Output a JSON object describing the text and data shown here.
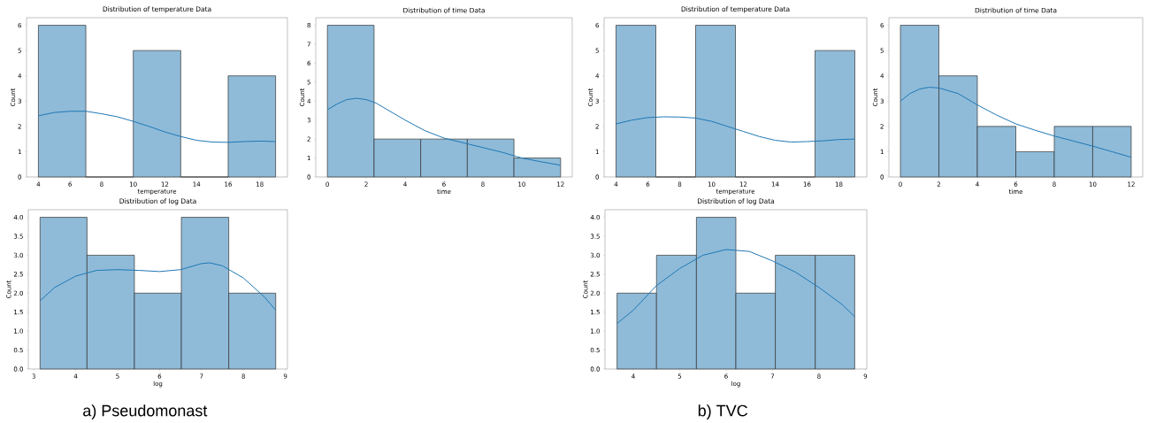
{
  "chart_data": [
    {
      "type": "histogram",
      "title": "Distribution of temperature Data",
      "xlabel": "temperature",
      "ylabel": "Count",
      "color": "#8fbbd9",
      "bins": [
        4,
        7,
        10,
        13,
        16,
        19
      ],
      "values": [
        6,
        0,
        5,
        0,
        4
      ],
      "xlim": [
        3.25,
        19.75
      ],
      "ylim": [
        0,
        6.3
      ],
      "xticks": [
        4,
        6,
        8,
        10,
        12,
        14,
        16,
        18
      ],
      "yticks": [
        0,
        1,
        2,
        3,
        4,
        5,
        6
      ],
      "series": [
        {
          "type": "line",
          "color": "#1f77b4",
          "x": [
            4,
            5,
            6,
            7,
            8,
            9,
            10,
            11,
            12,
            13,
            14,
            15,
            16,
            17,
            18,
            19
          ],
          "values": [
            2.42,
            2.55,
            2.6,
            2.6,
            2.5,
            2.38,
            2.2,
            2.0,
            1.78,
            1.6,
            1.45,
            1.38,
            1.37,
            1.4,
            1.42,
            1.4
          ]
        }
      ]
    },
    {
      "type": "histogram",
      "title": "Distribution of time Data",
      "xlabel": "time",
      "ylabel": "Count",
      "color": "#8fbbd9",
      "bins": [
        0,
        2.4,
        4.8,
        7.2,
        9.6,
        12
      ],
      "values": [
        8,
        2,
        2,
        2,
        1
      ],
      "xlim": [
        -0.6,
        12.6
      ],
      "ylim": [
        0,
        8.4
      ],
      "xticks": [
        0,
        2,
        4,
        6,
        8,
        10,
        12
      ],
      "yticks": [
        0,
        1,
        2,
        3,
        4,
        5,
        6,
        7,
        8
      ],
      "series": [
        {
          "type": "line",
          "color": "#1f77b4",
          "x": [
            0,
            0.5,
            1,
            1.5,
            2,
            2.5,
            3,
            4,
            5,
            6,
            7,
            8,
            9,
            10,
            11,
            12
          ],
          "values": [
            3.55,
            3.85,
            4.08,
            4.15,
            4.08,
            3.9,
            3.6,
            3.0,
            2.45,
            2.05,
            1.8,
            1.55,
            1.3,
            1.0,
            0.8,
            0.62
          ]
        }
      ]
    },
    {
      "type": "histogram",
      "title": "Distribution of temperature Data",
      "xlabel": "temperature",
      "ylabel": "Count",
      "color": "#8fbbd9",
      "bins": [
        4,
        6.5,
        9,
        11.5,
        14,
        16.5,
        19
      ],
      "values": [
        6,
        0,
        6,
        0,
        0,
        5
      ],
      "xlim": [
        3.25,
        19.75
      ],
      "ylim": [
        0,
        6.3
      ],
      "xticks": [
        4,
        6,
        8,
        10,
        12,
        14,
        16,
        18
      ],
      "yticks": [
        0,
        1,
        2,
        3,
        4,
        5,
        6
      ],
      "series": [
        {
          "type": "line",
          "color": "#1f77b4",
          "x": [
            4,
            5,
            6,
            7,
            8,
            9,
            10,
            11,
            12,
            13,
            14,
            15,
            16,
            17,
            18,
            19
          ],
          "values": [
            2.1,
            2.25,
            2.35,
            2.38,
            2.37,
            2.33,
            2.2,
            2.0,
            1.8,
            1.6,
            1.45,
            1.38,
            1.4,
            1.43,
            1.48,
            1.5
          ]
        }
      ]
    },
    {
      "type": "histogram",
      "title": "Distribution of time Data",
      "xlabel": "time",
      "ylabel": "Count",
      "color": "#8fbbd9",
      "bins": [
        0,
        2,
        4,
        6,
        8,
        10,
        12
      ],
      "values": [
        6,
        4,
        2,
        1,
        2,
        2
      ],
      "xlim": [
        -0.6,
        12.6
      ],
      "ylim": [
        0,
        6.3
      ],
      "xticks": [
        0,
        2,
        4,
        6,
        8,
        10,
        12
      ],
      "yticks": [
        0,
        1,
        2,
        3,
        4,
        5,
        6
      ],
      "series": [
        {
          "type": "line",
          "color": "#1f77b4",
          "x": [
            0,
            0.5,
            1,
            1.5,
            2,
            3,
            4,
            5,
            6,
            7,
            8,
            9,
            10,
            11,
            12
          ],
          "values": [
            3.0,
            3.3,
            3.48,
            3.55,
            3.52,
            3.3,
            2.85,
            2.45,
            2.1,
            1.85,
            1.62,
            1.42,
            1.22,
            1.0,
            0.78
          ]
        }
      ]
    },
    {
      "type": "histogram",
      "title": "Distribution of log Data",
      "xlabel": "log",
      "ylabel": "Count",
      "color": "#8fbbd9",
      "bins": [
        3.15,
        4.27,
        5.4,
        6.52,
        7.65,
        8.77
      ],
      "values": [
        4,
        3,
        2,
        4,
        2
      ],
      "xlim": [
        2.87,
        9.05
      ],
      "ylim": [
        0,
        4.2
      ],
      "xticks": [
        3,
        4,
        5,
        6,
        7,
        8,
        9
      ],
      "yticks": [
        {
          "value": 0,
          "label": "0.0"
        },
        {
          "value": 0.5,
          "label": "0.5"
        },
        {
          "value": 1,
          "label": "1.0"
        },
        {
          "value": 1.5,
          "label": "1.5"
        },
        {
          "value": 2,
          "label": "2.0"
        },
        {
          "value": 2.5,
          "label": "2.5"
        },
        {
          "value": 3,
          "label": "3.0"
        },
        {
          "value": 3.5,
          "label": "3.5"
        },
        {
          "value": 4,
          "label": "4.0"
        }
      ],
      "series": [
        {
          "type": "line",
          "color": "#1f77b4",
          "x": [
            3.15,
            3.5,
            4,
            4.5,
            5,
            5.5,
            6,
            6.5,
            7,
            7.2,
            7.5,
            8,
            8.5,
            8.77
          ],
          "values": [
            1.8,
            2.15,
            2.45,
            2.6,
            2.62,
            2.6,
            2.57,
            2.62,
            2.78,
            2.8,
            2.72,
            2.4,
            1.9,
            1.55
          ]
        }
      ],
      "annotations": [
        "a) Pseudomonast"
      ]
    },
    {
      "type": "histogram",
      "title": "Distribution of log Data",
      "xlabel": "log",
      "ylabel": "Count",
      "color": "#8fbbd9",
      "bins": [
        3.65,
        4.5,
        5.36,
        6.21,
        7.06,
        7.92,
        8.77
      ],
      "values": [
        2,
        3,
        4,
        2,
        3,
        3
      ],
      "xlim": [
        3.39,
        9.03
      ],
      "ylim": [
        0,
        4.2
      ],
      "xticks": [
        4,
        5,
        6,
        7,
        8,
        9
      ],
      "yticks": [
        {
          "value": 0,
          "label": "0.0"
        },
        {
          "value": 0.5,
          "label": "0.5"
        },
        {
          "value": 1,
          "label": "1.0"
        },
        {
          "value": 1.5,
          "label": "1.5"
        },
        {
          "value": 2,
          "label": "2.0"
        },
        {
          "value": 2.5,
          "label": "2.5"
        },
        {
          "value": 3,
          "label": "3.0"
        },
        {
          "value": 3.5,
          "label": "3.5"
        },
        {
          "value": 4,
          "label": "4.0"
        }
      ],
      "series": [
        {
          "type": "line",
          "color": "#1f77b4",
          "x": [
            3.65,
            4,
            4.5,
            5,
            5.5,
            6,
            6.5,
            7,
            7.5,
            8,
            8.5,
            8.77
          ],
          "values": [
            1.2,
            1.55,
            2.2,
            2.65,
            3.0,
            3.15,
            3.1,
            2.85,
            2.55,
            2.15,
            1.7,
            1.38
          ]
        }
      ],
      "annotations": [
        "b) TVC"
      ]
    }
  ]
}
